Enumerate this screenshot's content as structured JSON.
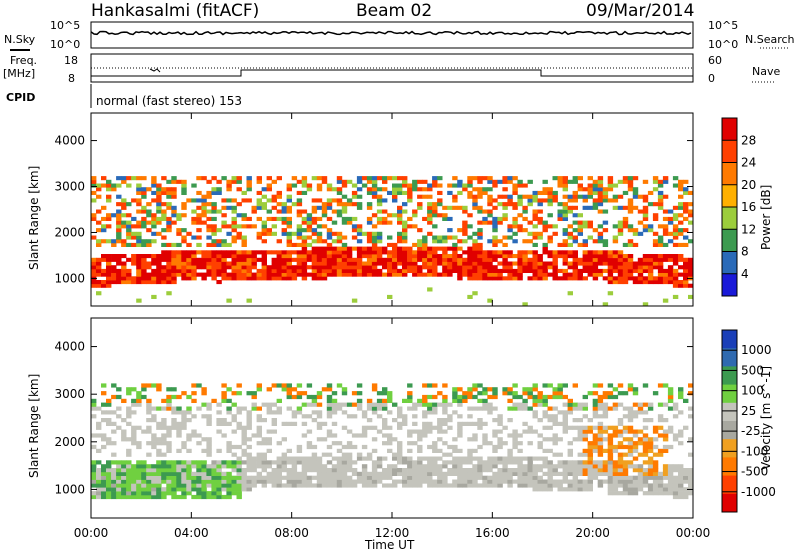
{
  "header": {
    "title": "Hankasalmi (fitACF)",
    "beam": "Beam 02",
    "date": "09/Mar/2014"
  },
  "colors": {
    "power": [
      "#e00000",
      "#ff4000",
      "#ff7a00",
      "#ffb000",
      "#9ccd3c",
      "#3c9a50",
      "#2a6ab8",
      "#1a1ad8"
    ],
    "velocity": [
      "#1a3fb8",
      "#2f6ab0",
      "#3c9a50",
      "#70d040",
      "#c4c4bc",
      "#a8a8a0",
      "#f0a020",
      "#ff7a00",
      "#ff4000",
      "#e00000"
    ]
  },
  "top_panels": {
    "nsky": {
      "label": "N.Sky",
      "ticks": [
        "10^5",
        "10^0"
      ]
    },
    "nsearch": {
      "label": "N.Search",
      "ticks": [
        "10^5",
        "10^0"
      ]
    },
    "freq": {
      "label": "Freq.",
      "unit": "[MHz]",
      "ticks": [
        "18",
        "8"
      ]
    },
    "nave": {
      "label": "Nave",
      "ticks": [
        "60",
        "0"
      ]
    },
    "cpid": {
      "label": "CPID",
      "value": "normal (fast stereo) 153"
    }
  },
  "chart_data": [
    {
      "type": "heatmap",
      "title": "Power",
      "xlabel": "Time UT",
      "ylabel": "Slant Range [km]",
      "x_ticks": [
        "00:00",
        "04:00",
        "08:00",
        "12:00",
        "16:00",
        "20:00",
        "00:00"
      ],
      "x_range_hours": [
        0,
        24
      ],
      "y_ticks": [
        "1000",
        "2000",
        "3000",
        "4000"
      ],
      "ylim": [
        400,
        4600
      ],
      "colorbar": {
        "label": "Power [dB]",
        "ticks": [
          "4",
          "8",
          "12",
          "16",
          "20",
          "24",
          "28"
        ],
        "range": [
          0,
          32
        ]
      },
      "features": [
        {
          "desc": "strong echo band",
          "time": [
            0,
            24
          ],
          "range_km": [
            800,
            1600
          ],
          "power_db": 30
        },
        {
          "desc": "far echoes",
          "time": [
            0,
            24
          ],
          "range_km": [
            1800,
            3200
          ],
          "power_db": 18
        }
      ]
    },
    {
      "type": "heatmap",
      "title": "Velocity",
      "xlabel": "Time UT",
      "ylabel": "Slant Range [km]",
      "x_ticks": [
        "00:00",
        "04:00",
        "08:00",
        "12:00",
        "16:00",
        "20:00",
        "00:00"
      ],
      "x_range_hours": [
        0,
        24
      ],
      "y_ticks": [
        "1000",
        "2000",
        "3000",
        "4000"
      ],
      "ylim": [
        400,
        4600
      ],
      "colorbar": {
        "label": "Velocity [m s^-1]",
        "ticks": [
          "1000",
          "500",
          "100",
          "25",
          "-25",
          "-100",
          "-500",
          "-1000"
        ]
      },
      "features": [
        {
          "desc": "ground scatter (grey)",
          "time": [
            0,
            24
          ],
          "range_km": [
            800,
            2800
          ],
          "velocity": 0
        },
        {
          "desc": "positive velocity region",
          "time": [
            0,
            6
          ],
          "range_km": [
            800,
            1600
          ],
          "velocity": 100
        },
        {
          "desc": "negative velocity region",
          "time": [
            19,
            23
          ],
          "range_km": [
            1400,
            2400
          ],
          "velocity": -500
        }
      ]
    }
  ]
}
